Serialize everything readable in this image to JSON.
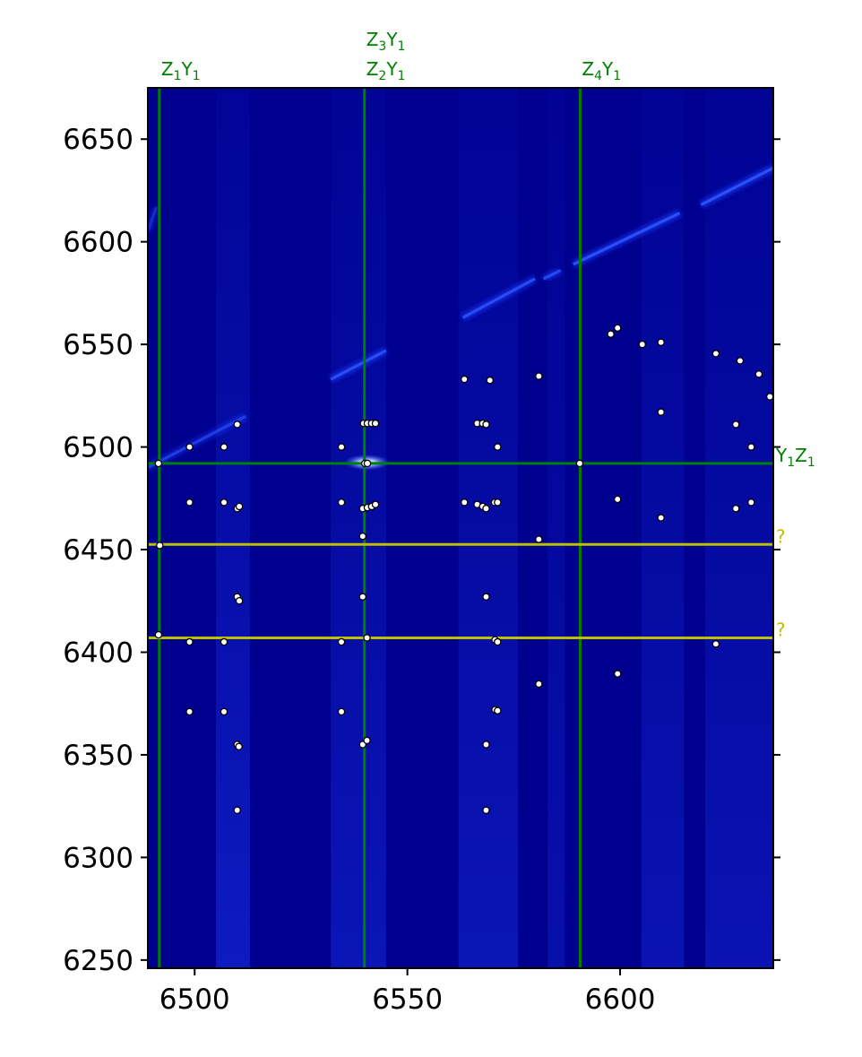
{
  "chart_data": {
    "type": "heatmap",
    "title": "",
    "xlabel": "",
    "ylabel": "",
    "xlim": [
      6489,
      6636
    ],
    "ylim": [
      6246,
      6675
    ],
    "x_ticks": [
      6500,
      6550,
      6600
    ],
    "y_ticks": [
      6250,
      6300,
      6350,
      6400,
      6450,
      6500,
      6550,
      6600,
      6650
    ],
    "grid": false,
    "colormap": "black-blue-white (intensity)",
    "colors": {
      "background": "#00008f",
      "vertical_lines": "#008000",
      "horizontal_assigned": "#008000",
      "horizontal_unknown": "#bfbf00",
      "markers_fill": "#ffffff",
      "markers_edge": "#000000"
    },
    "vertical_lines": [
      {
        "x": 6491.7,
        "labels": [
          {
            "main": "Z",
            "sub1": "1",
            "mid": "Y",
            "sub2": "1"
          }
        ]
      },
      {
        "x": 6539.9,
        "labels": [
          {
            "main": "Z",
            "sub1": "2",
            "mid": "Y",
            "sub2": "1"
          },
          {
            "main": "Z",
            "sub1": "3",
            "mid": "Y",
            "sub2": "1"
          }
        ]
      },
      {
        "x": 6590.6,
        "labels": [
          {
            "main": "Z",
            "sub1": "4",
            "mid": "Y",
            "sub2": "1"
          }
        ]
      }
    ],
    "horizontal_lines": [
      {
        "y": 6492.0,
        "label": {
          "main": "Y",
          "sub1": "1",
          "mid": "Z",
          "sub2": "1"
        },
        "kind": "assigned"
      },
      {
        "y": 6452.5,
        "label": {
          "main": "?",
          "sub1": "",
          "mid": "",
          "sub2": ""
        },
        "kind": "unknown"
      },
      {
        "y": 6407.0,
        "label": {
          "main": "?",
          "sub1": "",
          "mid": "",
          "sub2": ""
        },
        "kind": "unknown"
      }
    ],
    "diagonal_segments": [
      {
        "x": [
          6489,
          6512
        ],
        "y": [
          6490,
          6515
        ],
        "intensity": 0.55
      },
      {
        "x": [
          6489,
          6491
        ],
        "y": [
          6605,
          6617
        ],
        "intensity": 0.35
      },
      {
        "x": [
          6532,
          6545
        ],
        "y": [
          6533,
          6547
        ],
        "intensity": 0.75
      },
      {
        "x": [
          6563,
          6580
        ],
        "y": [
          6563,
          6582
        ],
        "intensity": 0.75
      },
      {
        "x": [
          6582,
          6586
        ],
        "y": [
          6582,
          6586
        ],
        "intensity": 0.7
      },
      {
        "x": [
          6589,
          6614
        ],
        "y": [
          6589,
          6614
        ],
        "intensity": 0.8
      },
      {
        "x": [
          6619,
          6636
        ],
        "y": [
          6618,
          6636
        ],
        "intensity": 0.8
      }
    ],
    "bright_spot": {
      "x": 6540.5,
      "y": 6492.5
    },
    "column_bands": [
      {
        "x": [
          6505,
          6513
        ],
        "brightness": 0.25
      },
      {
        "x": [
          6532,
          6545
        ],
        "brightness": 0.2
      },
      {
        "x": [
          6562,
          6576
        ],
        "brightness": 0.2
      },
      {
        "x": [
          6583,
          6587
        ],
        "brightness": 0.15
      },
      {
        "x": [
          6605,
          6615
        ],
        "brightness": 0.18
      },
      {
        "x": [
          6620,
          6636
        ],
        "brightness": 0.18
      }
    ],
    "points": [
      {
        "x": 6491.5,
        "y": 6492.0
      },
      {
        "x": 6491.8,
        "y": 6452.0
      },
      {
        "x": 6491.5,
        "y": 6408.5
      },
      {
        "x": 6498.8,
        "y": 6500.0
      },
      {
        "x": 6498.8,
        "y": 6473.0
      },
      {
        "x": 6498.8,
        "y": 6405.0
      },
      {
        "x": 6498.8,
        "y": 6371.0
      },
      {
        "x": 6506.9,
        "y": 6500.0
      },
      {
        "x": 6506.9,
        "y": 6473.0
      },
      {
        "x": 6506.9,
        "y": 6405.0
      },
      {
        "x": 6506.9,
        "y": 6371.0
      },
      {
        "x": 6510.0,
        "y": 6511.0
      },
      {
        "x": 6510.0,
        "y": 6470.0
      },
      {
        "x": 6510.5,
        "y": 6471.0
      },
      {
        "x": 6510.0,
        "y": 6427.0
      },
      {
        "x": 6510.5,
        "y": 6425.0
      },
      {
        "x": 6510.0,
        "y": 6355.0
      },
      {
        "x": 6510.4,
        "y": 6354.0
      },
      {
        "x": 6510.0,
        "y": 6323.0
      },
      {
        "x": 6534.5,
        "y": 6500.0
      },
      {
        "x": 6534.5,
        "y": 6473.0
      },
      {
        "x": 6534.5,
        "y": 6405.0
      },
      {
        "x": 6534.5,
        "y": 6371.0
      },
      {
        "x": 6539.7,
        "y": 6511.5
      },
      {
        "x": 6540.6,
        "y": 6511.5
      },
      {
        "x": 6541.6,
        "y": 6511.5
      },
      {
        "x": 6542.5,
        "y": 6511.5
      },
      {
        "x": 6540.0,
        "y": 6492.0
      },
      {
        "x": 6540.6,
        "y": 6492.0
      },
      {
        "x": 6539.5,
        "y": 6470.0
      },
      {
        "x": 6540.6,
        "y": 6470.5
      },
      {
        "x": 6541.6,
        "y": 6471.0
      },
      {
        "x": 6542.5,
        "y": 6472.0
      },
      {
        "x": 6539.5,
        "y": 6456.5
      },
      {
        "x": 6539.5,
        "y": 6427.0
      },
      {
        "x": 6540.5,
        "y": 6407.0
      },
      {
        "x": 6539.5,
        "y": 6355.0
      },
      {
        "x": 6540.5,
        "y": 6357.0
      },
      {
        "x": 6563.4,
        "y": 6533.0
      },
      {
        "x": 6563.4,
        "y": 6473.0
      },
      {
        "x": 6566.4,
        "y": 6511.5
      },
      {
        "x": 6567.7,
        "y": 6511.5
      },
      {
        "x": 6568.5,
        "y": 6511.0
      },
      {
        "x": 6566.4,
        "y": 6472.0
      },
      {
        "x": 6567.7,
        "y": 6471.0
      },
      {
        "x": 6568.5,
        "y": 6470.0
      },
      {
        "x": 6568.5,
        "y": 6427.0
      },
      {
        "x": 6568.5,
        "y": 6355.0
      },
      {
        "x": 6568.5,
        "y": 6323.0
      },
      {
        "x": 6569.4,
        "y": 6532.5
      },
      {
        "x": 6570.5,
        "y": 6473.0
      },
      {
        "x": 6571.2,
        "y": 6473.0
      },
      {
        "x": 6570.6,
        "y": 6406.0
      },
      {
        "x": 6571.2,
        "y": 6405.0
      },
      {
        "x": 6570.6,
        "y": 6372.0
      },
      {
        "x": 6571.2,
        "y": 6371.5
      },
      {
        "x": 6571.2,
        "y": 6500.0
      },
      {
        "x": 6580.9,
        "y": 6534.5
      },
      {
        "x": 6580.9,
        "y": 6455.0
      },
      {
        "x": 6580.9,
        "y": 6384.5
      },
      {
        "x": 6590.5,
        "y": 6492.0
      },
      {
        "x": 6597.8,
        "y": 6555.0
      },
      {
        "x": 6599.4,
        "y": 6558.0
      },
      {
        "x": 6599.4,
        "y": 6474.5
      },
      {
        "x": 6599.4,
        "y": 6389.5
      },
      {
        "x": 6605.2,
        "y": 6550.0
      },
      {
        "x": 6609.6,
        "y": 6551.0
      },
      {
        "x": 6609.6,
        "y": 6517.0
      },
      {
        "x": 6609.6,
        "y": 6465.5
      },
      {
        "x": 6622.5,
        "y": 6545.5
      },
      {
        "x": 6622.5,
        "y": 6404.0
      },
      {
        "x": 6627.2,
        "y": 6511.0
      },
      {
        "x": 6627.2,
        "y": 6470.0
      },
      {
        "x": 6628.2,
        "y": 6542.0
      },
      {
        "x": 6630.8,
        "y": 6500.0
      },
      {
        "x": 6630.8,
        "y": 6473.0
      },
      {
        "x": 6632.6,
        "y": 6535.5
      },
      {
        "x": 6635.2,
        "y": 6524.5
      }
    ]
  }
}
